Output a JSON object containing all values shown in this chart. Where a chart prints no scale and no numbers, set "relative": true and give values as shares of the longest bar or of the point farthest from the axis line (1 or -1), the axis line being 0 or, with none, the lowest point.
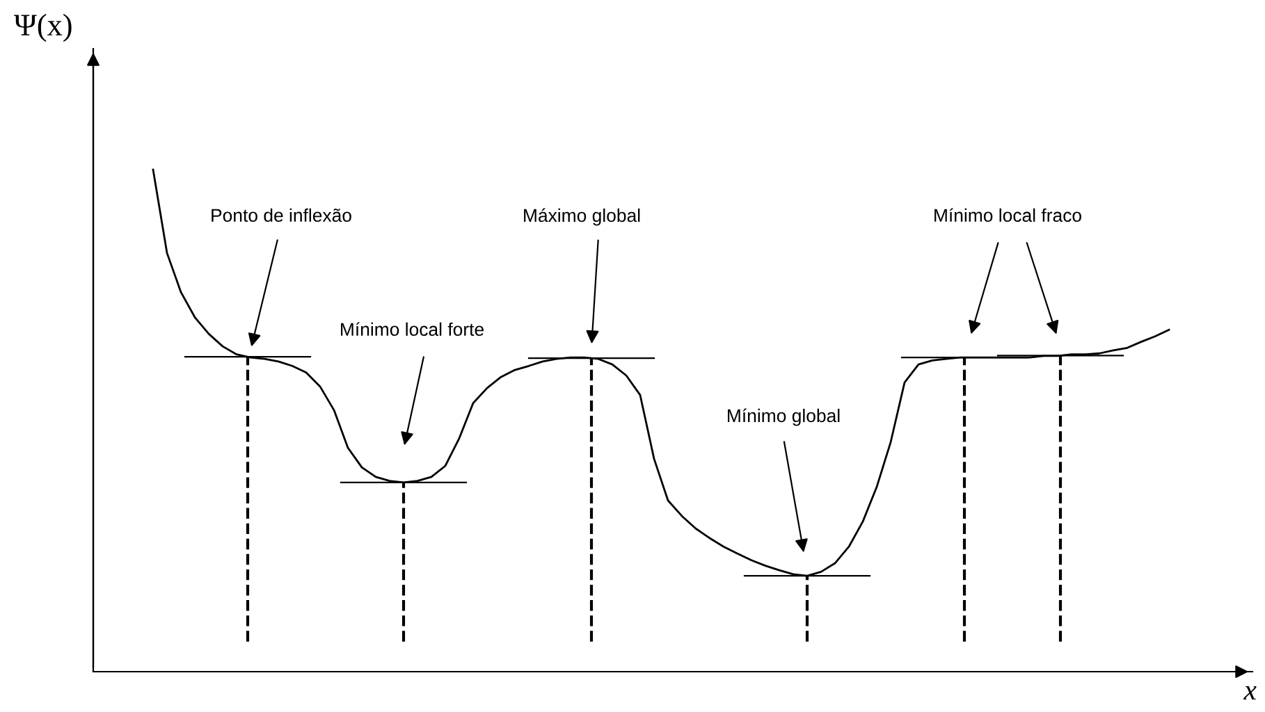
{
  "chart_data": {
    "type": "line",
    "relative": true,
    "xlabel": "x",
    "ylabel": "Ψ(x)",
    "categories": [
      null,
      null,
      null,
      null,
      null,
      null,
      null,
      null,
      null,
      null,
      null,
      null,
      null,
      null,
      null,
      null,
      null,
      null,
      null,
      null,
      null,
      null,
      null,
      null,
      null,
      null,
      null,
      null,
      null,
      null,
      null,
      null,
      null,
      null,
      null,
      null,
      null,
      null,
      null,
      null,
      null,
      null,
      null,
      null,
      null,
      null,
      null,
      null,
      null,
      null,
      null,
      null,
      null,
      null,
      null,
      null,
      null,
      null,
      null,
      null,
      null,
      null,
      null,
      null,
      null,
      null,
      null,
      null,
      null,
      null,
      null,
      null,
      null,
      null
    ],
    "series": [
      {
        "color": "#000000",
        "values": [
          1.0,
          0.834,
          0.756,
          0.706,
          0.673,
          0.648,
          0.632,
          0.626,
          0.623,
          0.618,
          0.609,
          0.596,
          0.568,
          0.521,
          0.446,
          0.407,
          0.388,
          0.38,
          0.377,
          0.38,
          0.388,
          0.41,
          0.465,
          0.535,
          0.565,
          0.587,
          0.601,
          0.609,
          0.618,
          0.623,
          0.626,
          0.626,
          0.623,
          0.612,
          0.59,
          0.551,
          0.424,
          0.341,
          0.31,
          0.285,
          0.266,
          0.249,
          0.235,
          0.222,
          0.211,
          0.202,
          0.194,
          0.191,
          0.199,
          0.216,
          0.249,
          0.299,
          0.368,
          0.457,
          0.576,
          0.612,
          0.62,
          0.623,
          0.626,
          0.626,
          0.626,
          0.626,
          0.626,
          0.626,
          0.629,
          0.629,
          0.632,
          0.632,
          0.634,
          0.64,
          0.645,
          0.657,
          0.668,
          0.681
        ]
      }
    ],
    "annotations": [
      "Ponto de inflexão",
      "Mínimo local forte",
      "Máximo global",
      "Mínimo global",
      "Mínimo local fraco"
    ],
    "grid": false,
    "marker": "none",
    "line_style": "solid"
  }
}
